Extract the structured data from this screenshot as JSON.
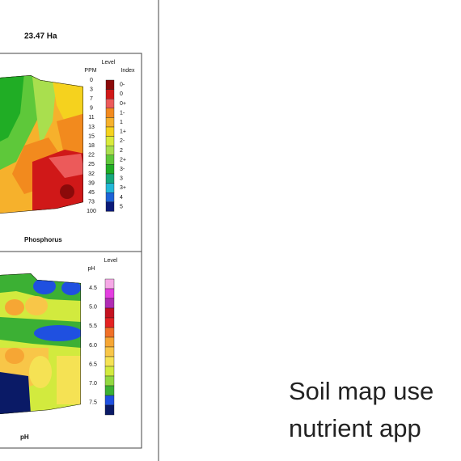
{
  "header": {
    "title": "23.47 Ha"
  },
  "maps": [
    {
      "label": "Phosphorus",
      "legend": {
        "heading": "Level",
        "columns": [
          "PPM",
          "Index"
        ],
        "ppm": [
          "0",
          "3",
          "7",
          "9",
          "11",
          "13",
          "15",
          "18",
          "22",
          "25",
          "32",
          "39",
          "45",
          "73",
          "100"
        ],
        "index": [
          "0-",
          "0",
          "0+",
          "1-",
          "1",
          "1+",
          "2-",
          "2",
          "2+",
          "3-",
          "3",
          "3+",
          "4",
          "5"
        ],
        "colors": [
          "#8b0a0a",
          "#d01818",
          "#ec5a5a",
          "#f28a1e",
          "#f6b12c",
          "#f5d21e",
          "#d9ea3c",
          "#a9df4e",
          "#5ec83a",
          "#20ad25",
          "#16a97c",
          "#22b8d8",
          "#1d63d8",
          "#0b1a78"
        ]
      }
    },
    {
      "label": "pH",
      "legend": {
        "heading": "Level",
        "column": "pH",
        "values": [
          "4.5",
          "5.0",
          "5.5",
          "6.0",
          "6.5",
          "7.0",
          "7.5"
        ],
        "colors": [
          "#f6a8e6",
          "#e43ee0",
          "#b02cb4",
          "#c41220",
          "#e42222",
          "#f07028",
          "#f6a634",
          "#f8c648",
          "#f5e254",
          "#d2ea3e",
          "#92d840",
          "#3cb034",
          "#1f50e0",
          "#0a1a66"
        ]
      }
    }
  ],
  "caption": [
    "Soil map use",
    "nutrient app"
  ]
}
